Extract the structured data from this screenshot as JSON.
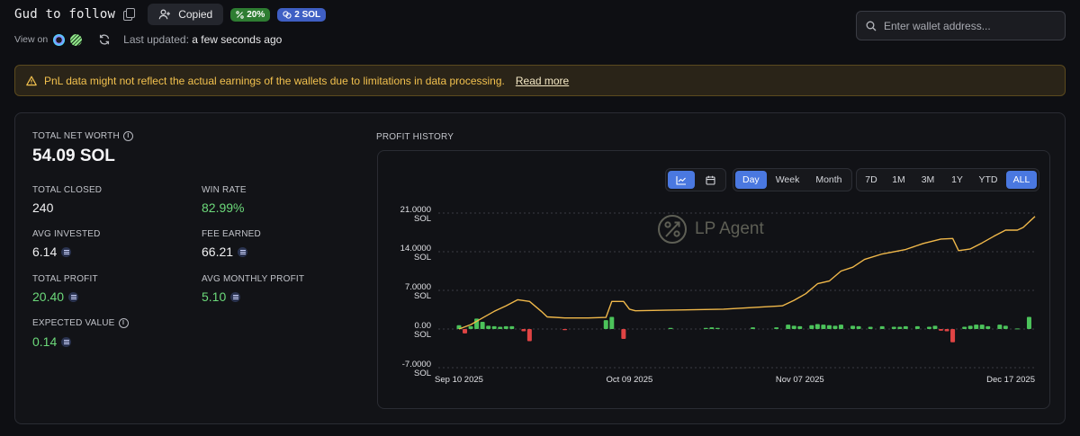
{
  "header": {
    "wallet_name": "Gud to follow",
    "copied_label": "Copied",
    "badge_percent": "20%",
    "badge_sol": "2 SOL",
    "view_on_label": "View on",
    "updated_prefix": "Last updated:",
    "updated_value": "a few seconds ago"
  },
  "search": {
    "placeholder": "Enter wallet address..."
  },
  "warning": {
    "text": "PnL data might not reflect the actual earnings of the wallets due to limitations in data processing.",
    "link": "Read more"
  },
  "stats": {
    "net_worth_label": "TOTAL NET WORTH",
    "net_worth_value": "54.09 SOL",
    "total_closed_label": "TOTAL CLOSED",
    "total_closed_value": "240",
    "win_rate_label": "WIN RATE",
    "win_rate_value": "82.99%",
    "avg_invested_label": "AVG INVESTED",
    "avg_invested_value": "6.14",
    "fee_earned_label": "FEE EARNED",
    "fee_earned_value": "66.21",
    "total_profit_label": "TOTAL PROFIT",
    "total_profit_value": "20.40",
    "avg_monthly_label": "AVG MONTHLY PROFIT",
    "avg_monthly_value": "5.10",
    "expected_value_label": "EXPECTED VALUE",
    "expected_value_value": "0.14"
  },
  "chart_panel": {
    "title": "PROFIT HISTORY",
    "watermark": "LP Agent",
    "granularity": [
      "Day",
      "Week",
      "Month"
    ],
    "granularity_active": "Day",
    "ranges": [
      "7D",
      "1M",
      "3M",
      "1Y",
      "YTD",
      "ALL"
    ],
    "range_active": "ALL",
    "view_active": "line-chart"
  },
  "colors": {
    "line": "#f0b84a",
    "bar_positive": "#4cc35b",
    "bar_negative": "#e04444",
    "accent": "#4a78e0"
  },
  "chart_data": {
    "type": "line",
    "ylim": [
      -7,
      21
    ],
    "y_ticks": [
      {
        "value": 21,
        "label": "21.0000",
        "unit": "SOL"
      },
      {
        "value": 14,
        "label": "14.0000",
        "unit": "SOL"
      },
      {
        "value": 7,
        "label": "7.0000",
        "unit": "SOL"
      },
      {
        "value": 0,
        "label": "0.00",
        "unit": "SOL"
      },
      {
        "value": -7,
        "label": "-7.0000",
        "unit": "SOL"
      }
    ],
    "x_ticks": [
      {
        "date": "2025-09-10",
        "label": "Sep 10 2025"
      },
      {
        "date": "2025-10-09",
        "label": "Oct 09 2025"
      },
      {
        "date": "2025-11-07",
        "label": "Nov 07 2025"
      },
      {
        "date": "2025-12-17",
        "label": "Dec 17 2025"
      }
    ],
    "xlim": [
      "2025-09-10",
      "2025-12-17"
    ],
    "cumulative": [
      [
        "2025-09-10",
        0.0
      ],
      [
        "2025-09-12",
        0.8
      ],
      [
        "2025-09-14",
        2.0
      ],
      [
        "2025-09-16",
        3.2
      ],
      [
        "2025-09-18",
        4.2
      ],
      [
        "2025-09-20",
        5.3
      ],
      [
        "2025-09-22",
        5.0
      ],
      [
        "2025-09-24",
        3.2
      ],
      [
        "2025-09-25",
        2.2
      ],
      [
        "2025-09-28",
        2.0
      ],
      [
        "2025-10-02",
        2.0
      ],
      [
        "2025-10-05",
        2.1
      ],
      [
        "2025-10-06",
        5.0
      ],
      [
        "2025-10-08",
        5.0
      ],
      [
        "2025-10-09",
        3.6
      ],
      [
        "2025-10-10",
        3.3
      ],
      [
        "2025-10-15",
        3.4
      ],
      [
        "2025-10-25",
        3.6
      ],
      [
        "2025-11-04",
        4.2
      ],
      [
        "2025-11-06",
        5.2
      ],
      [
        "2025-11-08",
        6.4
      ],
      [
        "2025-11-10",
        8.2
      ],
      [
        "2025-11-12",
        8.7
      ],
      [
        "2025-11-14",
        10.5
      ],
      [
        "2025-11-16",
        11.2
      ],
      [
        "2025-11-18",
        12.6
      ],
      [
        "2025-11-21",
        13.6
      ],
      [
        "2025-11-25",
        14.4
      ],
      [
        "2025-11-28",
        15.5
      ],
      [
        "2025-12-01",
        16.3
      ],
      [
        "2025-12-03",
        16.4
      ],
      [
        "2025-12-04",
        14.2
      ],
      [
        "2025-12-06",
        14.5
      ],
      [
        "2025-12-08",
        15.6
      ],
      [
        "2025-12-10",
        16.8
      ],
      [
        "2025-12-12",
        17.9
      ],
      [
        "2025-12-14",
        17.9
      ],
      [
        "2025-12-15",
        18.4
      ],
      [
        "2025-12-17",
        20.4
      ]
    ],
    "daily": [
      [
        "2025-09-10",
        0.7
      ],
      [
        "2025-09-11",
        -0.8
      ],
      [
        "2025-09-12",
        0.5
      ],
      [
        "2025-09-13",
        1.9
      ],
      [
        "2025-09-14",
        1.3
      ],
      [
        "2025-09-15",
        0.6
      ],
      [
        "2025-09-16",
        0.5
      ],
      [
        "2025-09-17",
        0.4
      ],
      [
        "2025-09-18",
        0.5
      ],
      [
        "2025-09-19",
        0.5
      ],
      [
        "2025-09-21",
        -0.4
      ],
      [
        "2025-09-22",
        -2.2
      ],
      [
        "2025-09-28",
        -0.2
      ],
      [
        "2025-10-05",
        1.6
      ],
      [
        "2025-10-06",
        2.2
      ],
      [
        "2025-10-08",
        -1.8
      ],
      [
        "2025-10-16",
        0.2
      ],
      [
        "2025-10-22",
        0.2
      ],
      [
        "2025-10-23",
        0.3
      ],
      [
        "2025-10-24",
        0.2
      ],
      [
        "2025-10-30",
        0.3
      ],
      [
        "2025-11-03",
        0.3
      ],
      [
        "2025-11-05",
        0.8
      ],
      [
        "2025-11-06",
        0.6
      ],
      [
        "2025-11-07",
        0.5
      ],
      [
        "2025-11-09",
        0.7
      ],
      [
        "2025-11-10",
        0.9
      ],
      [
        "2025-11-11",
        0.8
      ],
      [
        "2025-11-12",
        0.7
      ],
      [
        "2025-11-13",
        0.6
      ],
      [
        "2025-11-14",
        0.8
      ],
      [
        "2025-11-16",
        0.6
      ],
      [
        "2025-11-17",
        0.5
      ],
      [
        "2025-11-19",
        0.4
      ],
      [
        "2025-11-21",
        0.5
      ],
      [
        "2025-11-23",
        0.4
      ],
      [
        "2025-11-24",
        0.4
      ],
      [
        "2025-11-25",
        0.5
      ],
      [
        "2025-11-27",
        0.5
      ],
      [
        "2025-11-29",
        0.4
      ],
      [
        "2025-11-30",
        0.6
      ],
      [
        "2025-12-01",
        -0.3
      ],
      [
        "2025-12-02",
        -0.4
      ],
      [
        "2025-12-03",
        -2.4
      ],
      [
        "2025-12-05",
        0.4
      ],
      [
        "2025-12-06",
        0.6
      ],
      [
        "2025-12-07",
        0.8
      ],
      [
        "2025-12-08",
        0.8
      ],
      [
        "2025-12-09",
        0.5
      ],
      [
        "2025-12-11",
        0.8
      ],
      [
        "2025-12-12",
        0.6
      ],
      [
        "2025-12-14",
        0.1
      ],
      [
        "2025-12-16",
        2.2
      ]
    ]
  }
}
